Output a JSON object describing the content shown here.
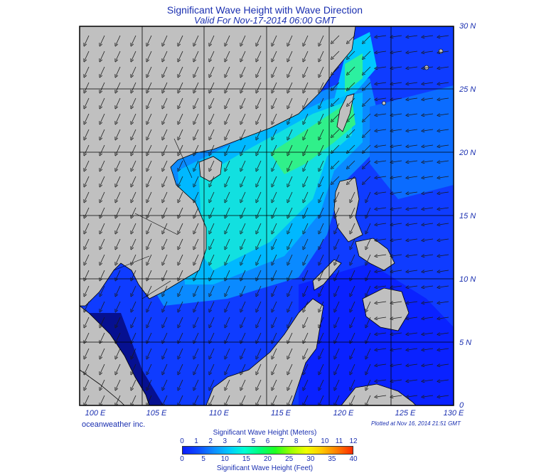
{
  "title": "Significant Wave Height with Wave Direction",
  "subtitle": "Valid For Nov-17-2014 06:00 GMT",
  "lat_labels": [
    "30 N",
    "25 N",
    "20 N",
    "15 N",
    "10 N",
    "5 N",
    "0"
  ],
  "lon_labels": [
    "100 E",
    "105 E",
    "110 E",
    "115 E",
    "120 E",
    "125 E",
    "130 E"
  ],
  "company": "oceanweather inc.",
  "plotted": "Plotted at Nov 16, 2014 21:51 GMT",
  "legend": {
    "meters_title": "Significant Wave Height (Meters)",
    "feet_title": "Significant Wave Height (Feet)",
    "meters_ticks": [
      "0",
      "1",
      "2",
      "3",
      "4",
      "5",
      "6",
      "7",
      "8",
      "9",
      "10",
      "11",
      "12"
    ],
    "feet_ticks": [
      "0",
      "5",
      "10",
      "15",
      "20",
      "25",
      "30",
      "35",
      "40"
    ],
    "colors": [
      "#0a1cff",
      "#0d4bff",
      "#0f8cff",
      "#00c8ff",
      "#00ffd2",
      "#00ff7a",
      "#20ff20",
      "#9bff00",
      "#f0ff00",
      "#ffc800",
      "#ff7d00",
      "#ff2b00"
    ]
  },
  "colors": {
    "land": "#c0c0c0",
    "deep_water": "#1448ff",
    "moderate_water": "#0aa6ff",
    "high_water": "#12e6c8",
    "peak_water": "#34f078",
    "text": "#1a2fb0"
  },
  "wave_direction": "arrows point toward southwest in the South China Sea and toward west in the Philippine Sea"
}
